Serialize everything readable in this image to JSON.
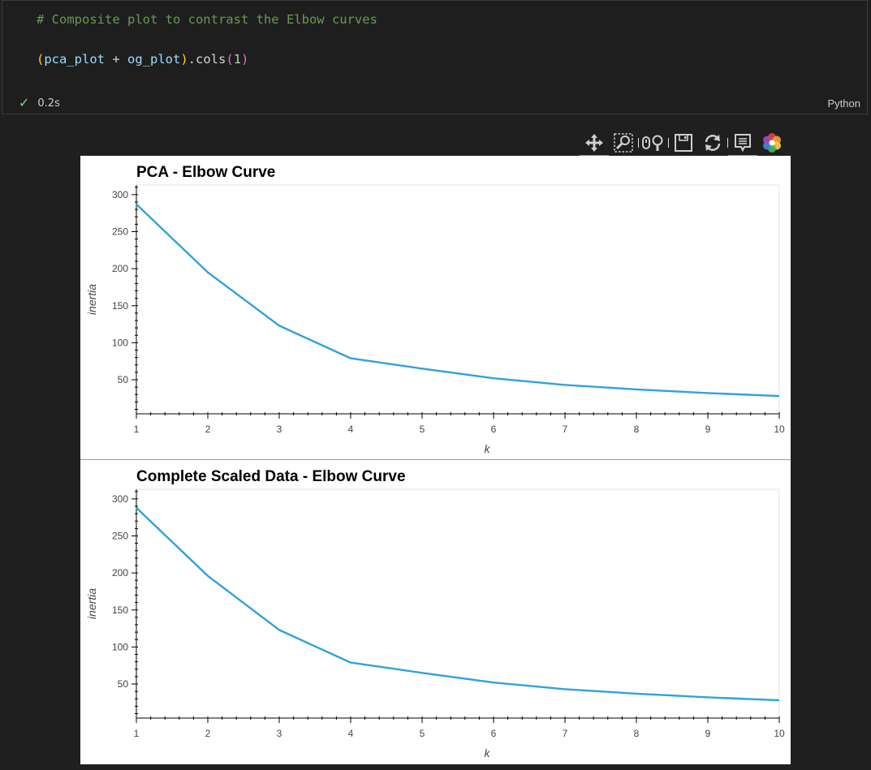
{
  "cell": {
    "comment": "# Composite plot to contrast the Elbow curves",
    "code": {
      "open": "(",
      "v1": "pca_plot",
      "plus": " + ",
      "v2": "og_plot",
      "close": ")",
      "method": ".cols",
      "arg_open": "(",
      "arg": "1",
      "arg_close": ")"
    },
    "status_time": "0.2s",
    "language": "Python"
  },
  "toolbar": {
    "icons": [
      "pan-icon",
      "box-zoom-icon",
      "wheel-zoom-icon",
      "save-icon",
      "reset-icon",
      "hover-icon",
      "bokeh-logo-icon"
    ],
    "active": [
      "pan-icon",
      "hover-icon"
    ],
    "accent": "#26aae1"
  },
  "chart_data": [
    {
      "type": "line",
      "title": "PCA - Elbow Curve",
      "xlabel": "k",
      "ylabel": "inertia",
      "x": [
        1,
        2,
        3,
        4,
        5,
        6,
        7,
        8,
        9,
        10
      ],
      "values": [
        287,
        195,
        123,
        79,
        65,
        52,
        43,
        37,
        32,
        28
      ],
      "xlim": [
        1,
        10
      ],
      "ylim": [
        4,
        313
      ],
      "xticks": [
        "1",
        "2",
        "3",
        "4",
        "5",
        "6",
        "7",
        "8",
        "9",
        "10"
      ],
      "yticks": [
        "50",
        "100",
        "150",
        "200",
        "250",
        "300"
      ],
      "grid": false,
      "color": "#30a2da"
    },
    {
      "type": "line",
      "title": "Complete Scaled Data - Elbow Curve",
      "xlabel": "k",
      "ylabel": "inertia",
      "x": [
        1,
        2,
        3,
        4,
        5,
        6,
        7,
        8,
        9,
        10
      ],
      "values": [
        288,
        196,
        123,
        79,
        65,
        52,
        43,
        37,
        32,
        28
      ],
      "xlim": [
        1,
        10
      ],
      "ylim": [
        4,
        313
      ],
      "xticks": [
        "1",
        "2",
        "3",
        "4",
        "5",
        "6",
        "7",
        "8",
        "9",
        "10"
      ],
      "yticks": [
        "50",
        "100",
        "150",
        "200",
        "250",
        "300"
      ],
      "grid": false,
      "color": "#30a2da"
    }
  ]
}
